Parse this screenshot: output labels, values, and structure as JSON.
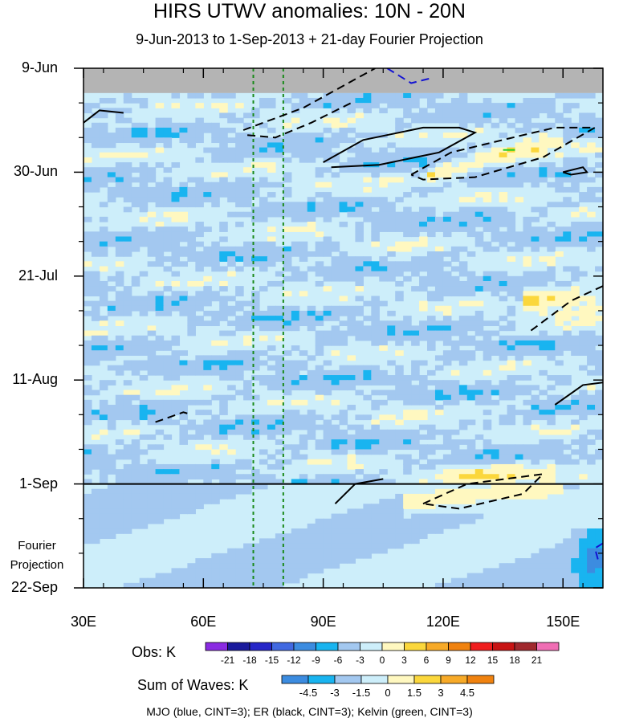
{
  "chart_data": {
    "type": "heatmap",
    "title": "HIRS UTWV anomalies: 10N - 20N",
    "subtitle": "9-Jun-2013 to 1-Sep-2013 + 21-day Fourier Projection",
    "x_ticks": [
      "30E",
      "60E",
      "90E",
      "120E",
      "150E"
    ],
    "x_tick_values": [
      30,
      60,
      90,
      120,
      150
    ],
    "xlim": [
      30,
      160
    ],
    "y_ticks": [
      "9-Jun",
      "30-Jun",
      "21-Jul",
      "11-Aug",
      "1-Sep",
      "22-Sep"
    ],
    "y_tick_days": [
      0,
      21,
      42,
      63,
      84,
      105
    ],
    "ylim_days": [
      0,
      105
    ],
    "projection_start_day": 84,
    "fourier_label": "Fourier Projection",
    "missing_data_days": [
      0,
      5
    ],
    "obs_legend": {
      "label": "Obs: K",
      "levels": [
        "-21",
        "-18",
        "-15",
        "-12",
        "-9",
        "-6",
        "-3",
        "0",
        "3",
        "6",
        "9",
        "12",
        "15",
        "18",
        "21"
      ],
      "colors": [
        "#8a2be2",
        "#1a1a9c",
        "#2626c8",
        "#4169e1",
        "#3c8ce0",
        "#19b4f0",
        "#a3c8f0",
        "#cdeefa",
        "#fff8c0",
        "#fbd73c",
        "#f7aa28",
        "#f0820f",
        "#f01e1e",
        "#c81414",
        "#a0282d",
        "#f06eb4"
      ]
    },
    "waves_legend": {
      "label": "Sum of Waves: K",
      "levels": [
        "-4.5",
        "-3",
        "-1.5",
        "0",
        "1.5",
        "3",
        "4.5"
      ],
      "colors": [
        "#3c8ce0",
        "#19b4f0",
        "#a3c8f0",
        "#cdeefa",
        "#fff8c0",
        "#fbd73c",
        "#f7aa28",
        "#f0820f"
      ]
    },
    "reference_longitudes": [
      72.5,
      80
    ],
    "contours": [
      {
        "wave": "ER",
        "sign": "positive",
        "points": [
          [
            30,
            11
          ],
          [
            34,
            8.5
          ],
          [
            40,
            9
          ]
        ]
      },
      {
        "wave": "ER",
        "sign": "negative",
        "points": [
          [
            70,
            12.5
          ],
          [
            85,
            8
          ],
          [
            103,
            0
          ]
        ]
      },
      {
        "wave": "ER",
        "sign": "negative",
        "points": [
          [
            71,
            13.5
          ],
          [
            78,
            14
          ],
          [
            87,
            11
          ],
          [
            97,
            7
          ]
        ]
      },
      {
        "wave": "ER",
        "sign": "positive",
        "points": [
          [
            90,
            19
          ],
          [
            100,
            14.5
          ],
          [
            115,
            12
          ],
          [
            124,
            12
          ],
          [
            128,
            13
          ],
          [
            119,
            17
          ],
          [
            104,
            19.5
          ],
          [
            92,
            20
          ]
        ]
      },
      {
        "wave": "ER",
        "sign": "negative",
        "points": [
          [
            112,
            21.5
          ],
          [
            122,
            17
          ],
          [
            140,
            13.5
          ],
          [
            148,
            12
          ],
          [
            158,
            12
          ],
          [
            145,
            18
          ],
          [
            128,
            22
          ],
          [
            115,
            22.5
          ],
          [
            112,
            21.5
          ]
        ]
      },
      {
        "wave": "ER",
        "sign": "positive",
        "points": [
          [
            150,
            21
          ],
          [
            155,
            20
          ],
          [
            156,
            21
          ],
          [
            152,
            21.5
          ],
          [
            150,
            21
          ]
        ]
      },
      {
        "wave": "ER",
        "sign": "negative",
        "points": [
          [
            142,
            53
          ],
          [
            152,
            47
          ],
          [
            160,
            44
          ]
        ]
      },
      {
        "wave": "ER",
        "sign": "positive",
        "points": [
          [
            148,
            68
          ],
          [
            155,
            64
          ],
          [
            160,
            63.5
          ]
        ]
      },
      {
        "wave": "ER",
        "sign": "negative",
        "points": [
          [
            48,
            71.5
          ],
          [
            55,
            69.5
          ],
          [
            57,
            70
          ]
        ]
      },
      {
        "wave": "ER",
        "sign": "positive",
        "points": [
          [
            93,
            88
          ],
          [
            98,
            84
          ],
          [
            105,
            83
          ]
        ]
      },
      {
        "wave": "ER",
        "sign": "negative",
        "points": [
          [
            115,
            88
          ],
          [
            126,
            84
          ],
          [
            145,
            82
          ],
          [
            140,
            86
          ],
          [
            124,
            89
          ],
          [
            115,
            88
          ]
        ]
      },
      {
        "wave": "MJO",
        "sign": "negative",
        "points": [
          [
            106,
            0
          ],
          [
            112,
            3
          ],
          [
            117,
            2
          ]
        ]
      },
      {
        "wave": "MJO",
        "sign": "negative",
        "points": [
          [
            160,
            96
          ],
          [
            158,
            97
          ],
          [
            159,
            100
          ]
        ]
      },
      {
        "wave": "Kelvin",
        "sign": "positive",
        "points": [
          [
            135,
            16.5
          ],
          [
            138,
            16.5
          ]
        ]
      }
    ]
  },
  "footer": "MJO (blue, CINT=3); ER (black, CINT=3); Kelvin (green, CINT=3)"
}
